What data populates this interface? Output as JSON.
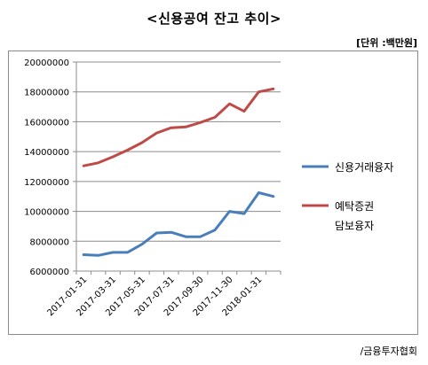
{
  "title": "<신용공여 잔고 추이>",
  "unit": "[단위 :백만원]",
  "source": "/금융투자협회",
  "chart_data": {
    "type": "line",
    "title": "<신용공여 잔고 추이>",
    "xlabel": "",
    "ylabel": "",
    "ylim": [
      6000000,
      20000000
    ],
    "yticks": [
      "20000000",
      "18000000",
      "16000000",
      "14000000",
      "12000000",
      "10000000",
      "8000000",
      "6000000"
    ],
    "x": [
      "2017-01-31",
      "2017-02-28",
      "2017-03-31",
      "2017-04-30",
      "2017-05-31",
      "2017-06-30",
      "2017-07-31",
      "2017-08-31",
      "2017-09-30",
      "2017-10-31",
      "2017-11-30",
      "2017-12-31",
      "2018-01-31",
      "2018-02-28"
    ],
    "xtick_labels": [
      "2017-01-31",
      "2017-03-31",
      "2017-05-31",
      "2017-07-31",
      "2017-09-30",
      "2017-11-30",
      "2018-01-31"
    ],
    "xtick_indices": [
      0,
      2,
      4,
      6,
      8,
      10,
      12
    ],
    "grid": "horizontal",
    "legend": "right",
    "series": [
      {
        "name": "신용거래융자",
        "color": "#4a7ebb",
        "values": [
          7100000,
          7050000,
          7250000,
          7250000,
          7800000,
          8550000,
          8600000,
          8300000,
          8300000,
          8750000,
          10000000,
          9850000,
          11250000,
          11000000
        ]
      },
      {
        "name": "예탁증권\n담보융자",
        "color": "#be4b48",
        "values": [
          13050000,
          13250000,
          13650000,
          14100000,
          14600000,
          15250000,
          15600000,
          15650000,
          15950000,
          16300000,
          17200000,
          16700000,
          18000000,
          18200000
        ]
      }
    ]
  }
}
